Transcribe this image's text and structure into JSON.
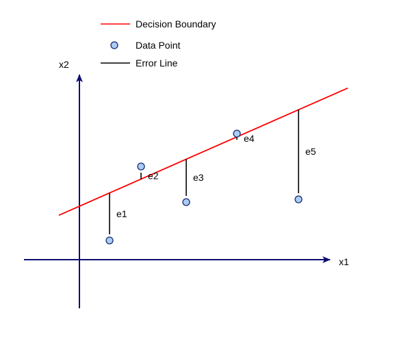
{
  "colors": {
    "axis": "#0d0d73",
    "boundary": "#ff0000",
    "point_fill": "#aaccf5",
    "point_stroke": "#1a2a6e",
    "error_line": "#000000"
  },
  "legend": {
    "boundary_label": "Decision Boundary",
    "point_label": "Data Point",
    "error_label": "Error Line"
  },
  "axes": {
    "x_label": "x1",
    "y_label": "x2"
  },
  "points": [
    {
      "label": "e1",
      "x": 1.1,
      "y": 0.7,
      "side": "below"
    },
    {
      "label": "e2",
      "x": 2.25,
      "y": 3.4,
      "side": "above"
    },
    {
      "label": "e3",
      "x": 3.9,
      "y": 2.1,
      "side": "below"
    },
    {
      "label": "e4",
      "x": 5.75,
      "y": 4.6,
      "side": "above"
    },
    {
      "label": "e5",
      "x": 8.0,
      "y": 2.2,
      "side": "below"
    }
  ],
  "boundary": {
    "slope": 0.44,
    "intercept": 1.95,
    "x_start": -0.75,
    "x_end": 9.8
  }
}
